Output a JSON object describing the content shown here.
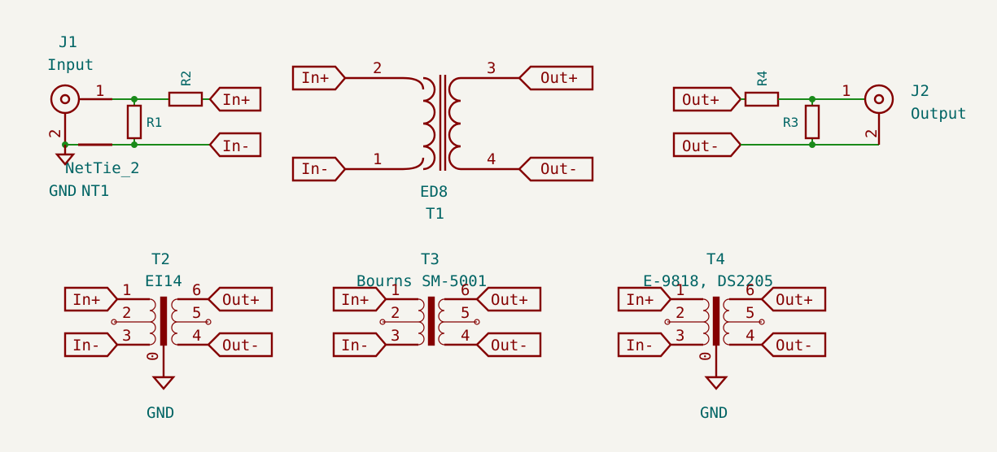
{
  "colors": {
    "background": "#f5f4ef",
    "symbol": "#840000",
    "wire": "#1a8a1a",
    "reference": "#006464"
  },
  "j1": {
    "ref": "J1",
    "value": "Input",
    "pin1": "1",
    "pin2": "2"
  },
  "j2": {
    "ref": "J2",
    "value": "Output",
    "pin1": "1",
    "pin2": "2"
  },
  "r1": {
    "ref": "R1"
  },
  "r2": {
    "ref": "R2"
  },
  "r3": {
    "ref": "R3"
  },
  "r4": {
    "ref": "R4"
  },
  "nt1": {
    "ref": "NT1",
    "value": "NetTie_2"
  },
  "gnd_top": {
    "label": "GND"
  },
  "t1": {
    "ref": "T1",
    "value": "ED8",
    "pin1": "1",
    "pin2": "2",
    "pin3": "3",
    "pin4": "4"
  },
  "t2": {
    "ref": "T2",
    "value": "EI14",
    "pins": [
      "1",
      "2",
      "3",
      "4",
      "5",
      "6",
      "0"
    ],
    "gnd": "GND"
  },
  "t3": {
    "ref": "T3",
    "value": "Bourns SM-5001",
    "pins": [
      "1",
      "2",
      "3",
      "4",
      "5",
      "6"
    ]
  },
  "t4": {
    "ref": "T4",
    "value": "E-9818, DS2205",
    "pins": [
      "1",
      "2",
      "3",
      "4",
      "5",
      "6",
      "0"
    ],
    "gnd": "GND"
  },
  "labels": {
    "in_plus": "In+",
    "in_minus": "In-",
    "out_plus": "Out+",
    "out_minus": "Out-"
  }
}
